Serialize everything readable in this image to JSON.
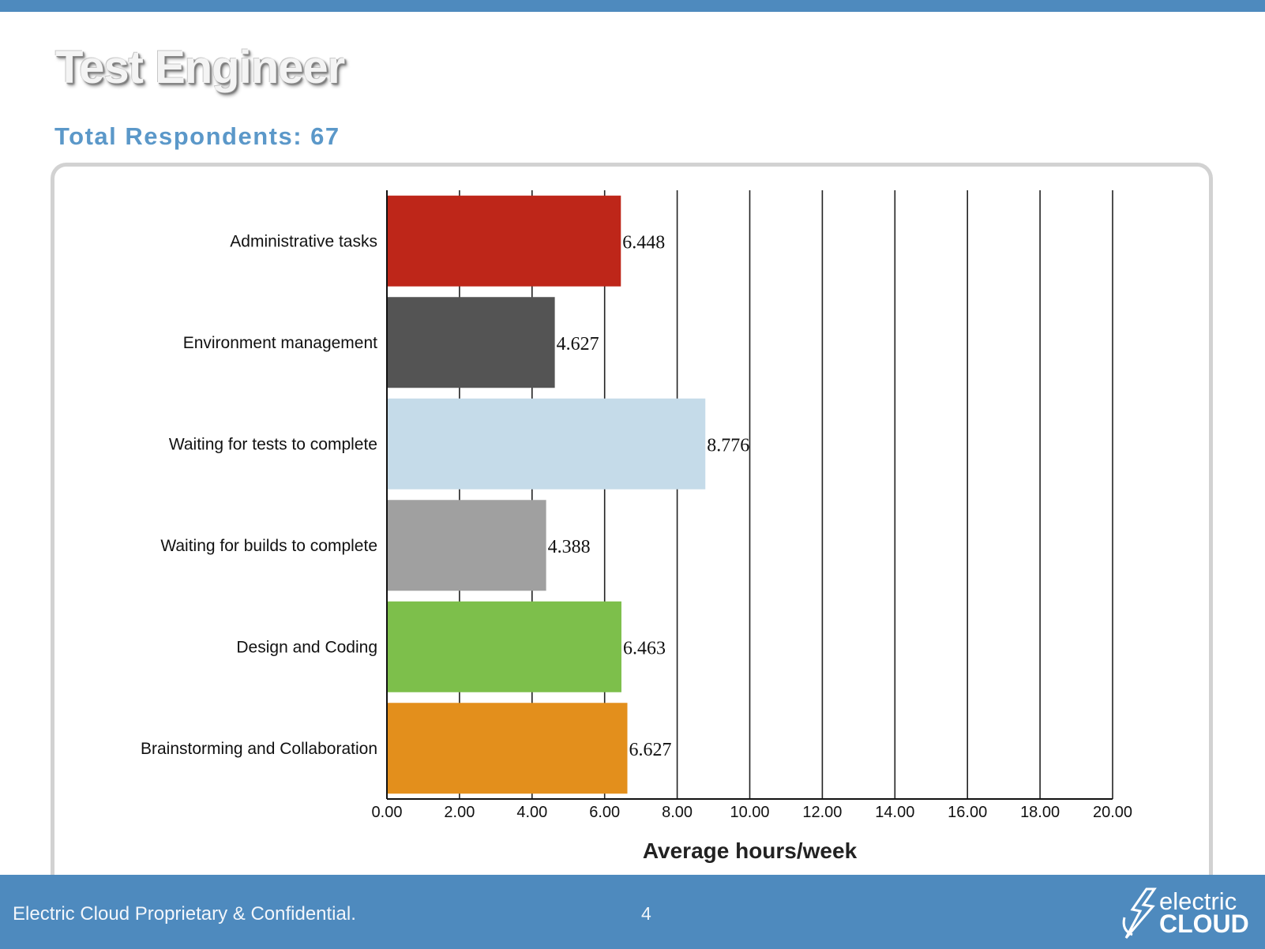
{
  "slide": {
    "title": "Test Engineer",
    "subtitle": "Total Respondents: 67"
  },
  "footer": {
    "confidential": "Electric Cloud Proprietary & Confidential.",
    "page_number": "4",
    "logo_line1": "electric",
    "logo_line2": "CLOUD"
  },
  "colors": {
    "header_bar": "#4e8abe",
    "subtitle": "#5b98c9"
  },
  "chart_data": {
    "type": "bar",
    "orientation": "horizontal",
    "categories": [
      "Administrative tasks",
      "Environment management",
      "Waiting for tests to complete",
      "Waiting for builds to complete",
      "Design and Coding",
      "Brainstorming and Collaboration"
    ],
    "values": [
      6.448,
      4.627,
      8.776,
      4.388,
      6.463,
      6.627
    ],
    "value_labels": [
      "6.448",
      "4.627",
      "8.776",
      "4.388",
      "6.463",
      "6.627"
    ],
    "colors": [
      "#be2619",
      "#545454",
      "#c5dbe9",
      "#a0a0a0",
      "#7dbf4b",
      "#e38f1c"
    ],
    "xlabel": "Average hours/week",
    "ylabel": "",
    "xlim": [
      0,
      20
    ],
    "xticks": [
      "0.00",
      "2.00",
      "4.00",
      "6.00",
      "8.00",
      "10.00",
      "12.00",
      "14.00",
      "16.00",
      "18.00",
      "20.00"
    ],
    "grid": "vertical"
  }
}
